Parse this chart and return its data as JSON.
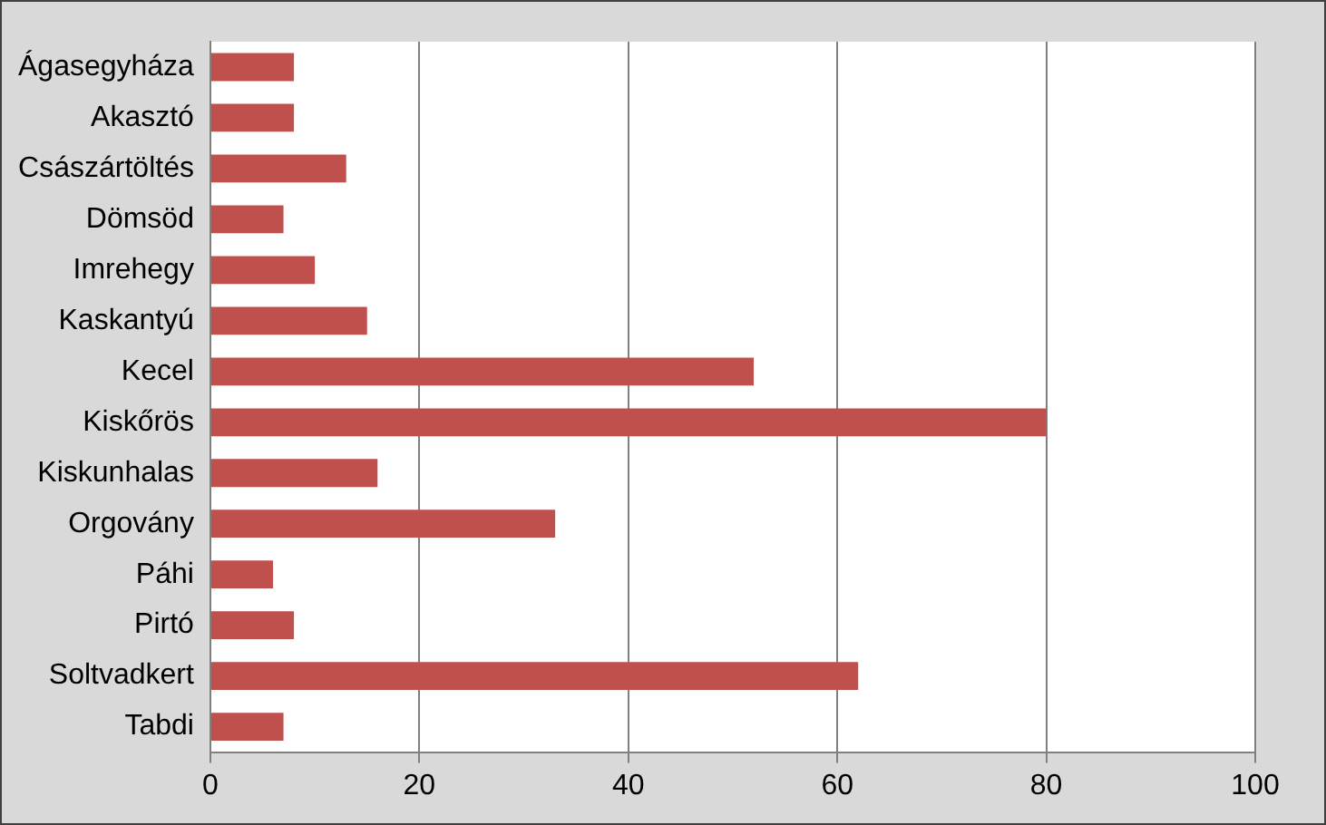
{
  "chart_data": {
    "type": "bar",
    "orientation": "horizontal",
    "categories": [
      "Ágasegyháza",
      "Akasztó",
      "Császártöltés",
      "Dömsöd",
      "Imrehegy",
      "Kaskantyú",
      "Kecel",
      "Kiskőrös",
      "Kiskunhalas",
      "Orgovány",
      "Páhi",
      "Pirtó",
      "Soltvadkert",
      "Tabdi"
    ],
    "values": [
      8,
      8,
      13,
      7,
      10,
      15,
      52,
      80,
      16,
      33,
      6,
      8,
      62,
      7
    ],
    "color": "#c0504d",
    "xlim": [
      0,
      100
    ],
    "xticks": [
      0,
      20,
      40,
      60,
      80,
      100
    ],
    "grid": "x",
    "legend": false
  }
}
